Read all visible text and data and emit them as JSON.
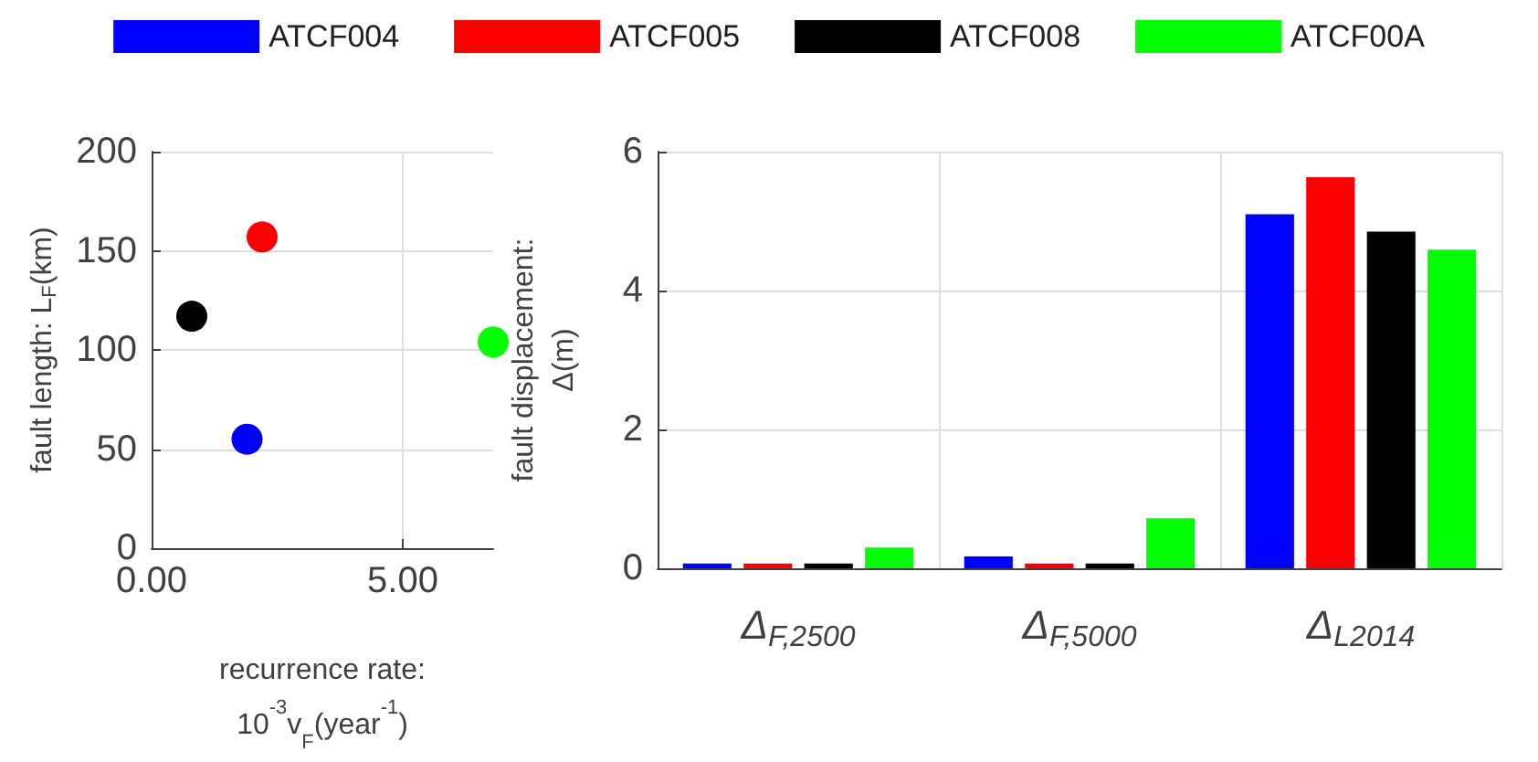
{
  "chart_data": [
    {
      "type": "scatter",
      "xlabel": "recurrence rate:\n10$^{-3}$v$_{F}$(year$^{-1}$)",
      "ylabel": "fault length: L$_{F}$(km)",
      "xlim": [
        0,
        6.8
      ],
      "xticks": [
        {
          "value": 0,
          "label": "0.00"
        },
        {
          "value": 5,
          "label": "5.00"
        }
      ],
      "ylim": [
        0,
        200
      ],
      "yticks": [
        0,
        50,
        100,
        150,
        200
      ],
      "grid": true,
      "marker": "circle",
      "legend": "top",
      "series": [
        {
          "name": "ATCF004",
          "color": "#0000ff",
          "x": [
            1.9
          ],
          "values": [
            55
          ]
        },
        {
          "name": "ATCF005",
          "color": "#ff0000",
          "x": [
            2.2
          ],
          "values": [
            157
          ]
        },
        {
          "name": "ATCF008",
          "color": "#000000",
          "x": [
            0.8
          ],
          "values": [
            117
          ]
        },
        {
          "name": "ATCF00A",
          "color": "#00ff00",
          "x": [
            6.8
          ],
          "values": [
            104
          ]
        }
      ]
    },
    {
      "type": "bar",
      "ylabel": "fault displacement:\nΔ(m)",
      "categories": [
        "Δ$_{F,2500}$",
        "Δ$_{F,5000}$",
        "Δ$_{L2014}$"
      ],
      "ylim": [
        0,
        6
      ],
      "yticks": [
        0,
        2,
        4,
        6
      ],
      "grid": true,
      "legend": "top",
      "series": [
        {
          "name": "ATCF004",
          "color": "#0000ff",
          "values": [
            0.07,
            0.17,
            5.1
          ]
        },
        {
          "name": "ATCF005",
          "color": "#ff0000",
          "values": [
            0.07,
            0.07,
            5.63
          ]
        },
        {
          "name": "ATCF008",
          "color": "#000000",
          "values": [
            0.07,
            0.07,
            4.85
          ]
        },
        {
          "name": "ATCF00A",
          "color": "#00ff00",
          "values": [
            0.3,
            0.72,
            4.59
          ]
        }
      ]
    }
  ]
}
